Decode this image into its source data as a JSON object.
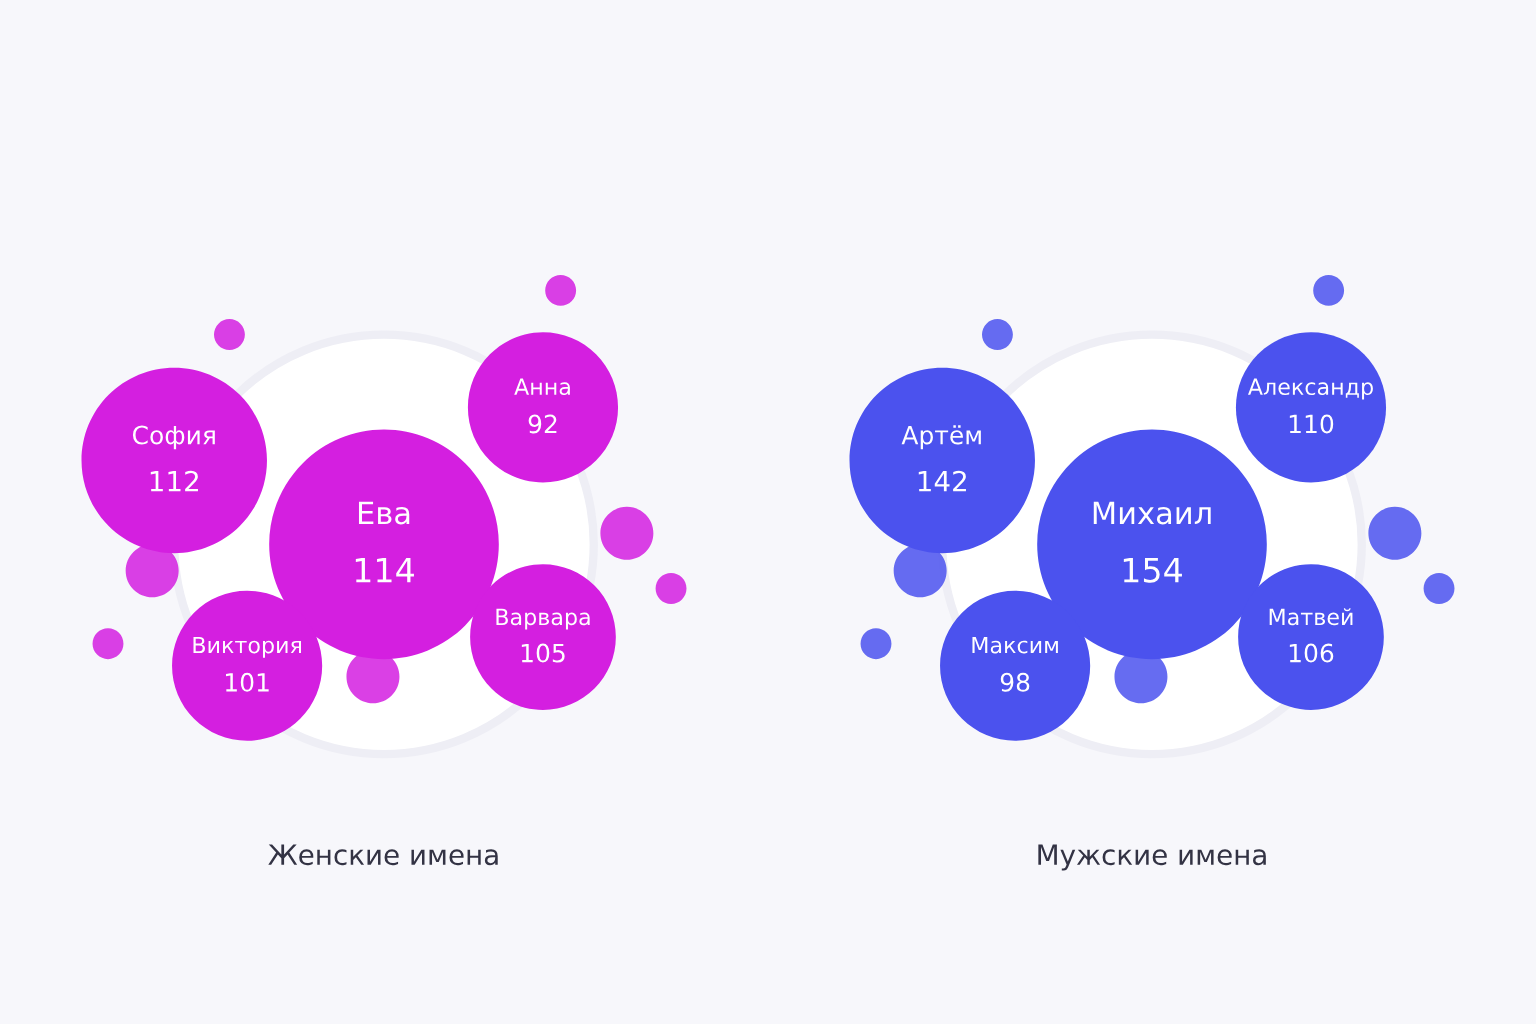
{
  "chart_data": [
    {
      "type": "other",
      "xlabel": "Женские имена",
      "categories": [
        "Ева",
        "София",
        "Виктория",
        "Варвара",
        "Анна"
      ],
      "values": [
        114,
        112,
        101,
        105,
        92
      ],
      "data_labels": true,
      "color": "#d41fe0"
    },
    {
      "type": "other",
      "xlabel": "Мужские имена",
      "categories": [
        "Михаил",
        "Артём",
        "Максим",
        "Матвей",
        "Александр"
      ],
      "values": [
        154,
        142,
        98,
        106,
        110
      ],
      "data_labels": true,
      "color": "#4b52ee"
    }
  ]
}
